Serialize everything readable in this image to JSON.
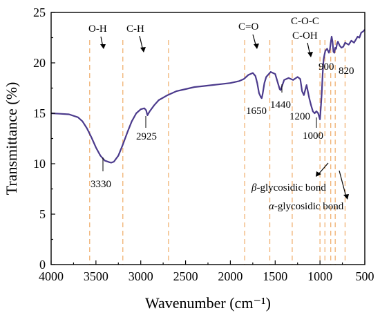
{
  "chart_data": {
    "type": "line",
    "title": "",
    "xlabel": "Wavenumber (cm⁻¹)",
    "ylabel": "Transmittance (%)",
    "xlim": [
      4000,
      500
    ],
    "ylim": [
      0,
      25
    ],
    "x_reversed": true,
    "xticks": [
      4000,
      3500,
      3000,
      2500,
      2000,
      1500,
      1000,
      500
    ],
    "yticks": [
      0,
      5,
      10,
      15,
      20,
      25
    ],
    "grid": false,
    "line_color": "#4b3a8c",
    "guide_color": "#f0b070",
    "series": [
      {
        "x": [
          4000,
          3900,
          3800,
          3700,
          3650,
          3600,
          3550,
          3500,
          3450,
          3400,
          3350,
          3330,
          3300,
          3250,
          3200,
          3150,
          3100,
          3050,
          3000,
          2960,
          2940,
          2925,
          2900,
          2850,
          2800,
          2700,
          2600,
          2500,
          2400,
          2300,
          2200,
          2100,
          2000,
          1900,
          1850,
          1800,
          1750,
          1720,
          1700,
          1680,
          1660,
          1650,
          1640,
          1620,
          1600,
          1550,
          1500,
          1470,
          1450,
          1440,
          1420,
          1400,
          1350,
          1300,
          1250,
          1220,
          1200,
          1180,
          1150,
          1120,
          1100,
          1080,
          1060,
          1040,
          1020,
          1000,
          990,
          980,
          970,
          960,
          950,
          940,
          920,
          900,
          890,
          880,
          870,
          860,
          850,
          840,
          830,
          820,
          810,
          800,
          780,
          760,
          740,
          720,
          700,
          680,
          650,
          620,
          600,
          580,
          560,
          540,
          520,
          500
        ],
        "y": [
          15.0,
          14.95,
          14.9,
          14.6,
          14.2,
          13.5,
          12.6,
          11.6,
          10.8,
          10.3,
          10.15,
          10.1,
          10.2,
          10.8,
          11.9,
          13.1,
          14.2,
          15.0,
          15.4,
          15.5,
          15.3,
          14.8,
          15.2,
          15.8,
          16.3,
          16.8,
          17.2,
          17.4,
          17.6,
          17.7,
          17.8,
          17.9,
          18.0,
          18.2,
          18.4,
          18.8,
          19.0,
          18.7,
          18.0,
          17.0,
          16.6,
          16.5,
          16.9,
          18.0,
          18.6,
          19.1,
          18.9,
          18.0,
          17.4,
          17.3,
          17.8,
          18.3,
          18.5,
          18.3,
          18.6,
          18.4,
          17.2,
          16.8,
          17.8,
          16.5,
          15.8,
          15.2,
          15.0,
          15.2,
          15.0,
          14.4,
          15.6,
          17.0,
          18.9,
          20.3,
          20.8,
          21.2,
          21.4,
          21.0,
          21.3,
          22.0,
          22.6,
          22.1,
          21.1,
          21.0,
          21.5,
          21.4,
          21.9,
          22.1,
          21.7,
          21.5,
          21.6,
          22.0,
          21.9,
          21.8,
          22.2,
          22.0,
          22.3,
          22.6,
          22.5,
          23.0,
          23.1,
          23.3
        ]
      }
    ],
    "guides": [
      3570,
      3200,
      2690,
      1840,
      1560,
      1310,
      1000,
      945,
      880,
      830,
      720
    ],
    "annotations": [
      {
        "id": "oh",
        "text": "O-H"
      },
      {
        "id": "ch",
        "text": "C-H"
      },
      {
        "id": "co",
        "text": "C=O"
      },
      {
        "id": "coc",
        "text": "C-O-C"
      },
      {
        "id": "coh",
        "text": "C-OH"
      },
      {
        "id": "p3330",
        "text": "3330"
      },
      {
        "id": "p2925",
        "text": "2925"
      },
      {
        "id": "p1650",
        "text": "1650"
      },
      {
        "id": "p1440",
        "text": "1440"
      },
      {
        "id": "p1200",
        "text": "1200"
      },
      {
        "id": "p1000",
        "text": "1000"
      },
      {
        "id": "p900",
        "text": "900"
      },
      {
        "id": "p820",
        "text": "820"
      }
    ],
    "bond_labels": {
      "beta_symbol": "β",
      "beta_text": "-glycosidic bond",
      "alpha_symbol": "α",
      "alpha_text": "-glycosidic bond"
    }
  }
}
